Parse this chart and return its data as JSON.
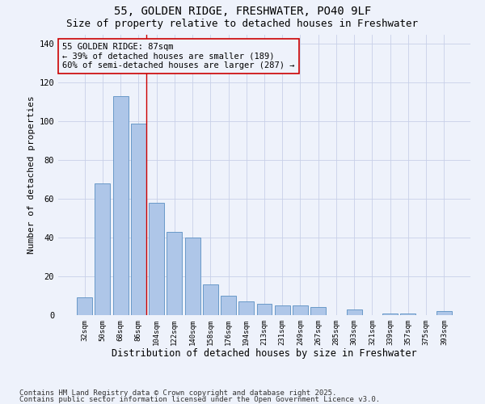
{
  "title_line1": "55, GOLDEN RIDGE, FRESHWATER, PO40 9LF",
  "title_line2": "Size of property relative to detached houses in Freshwater",
  "xlabel": "Distribution of detached houses by size in Freshwater",
  "ylabel": "Number of detached properties",
  "categories": [
    "32sqm",
    "50sqm",
    "68sqm",
    "86sqm",
    "104sqm",
    "122sqm",
    "140sqm",
    "158sqm",
    "176sqm",
    "194sqm",
    "213sqm",
    "231sqm",
    "249sqm",
    "267sqm",
    "285sqm",
    "303sqm",
    "321sqm",
    "339sqm",
    "357sqm",
    "375sqm",
    "393sqm"
  ],
  "values": [
    9,
    68,
    113,
    99,
    58,
    43,
    40,
    16,
    10,
    7,
    6,
    5,
    5,
    4,
    0,
    3,
    0,
    1,
    1,
    0,
    2
  ],
  "bar_color": "#aec6e8",
  "bar_edge_color": "#5a8fc2",
  "ylim": [
    0,
    145
  ],
  "yticks": [
    0,
    20,
    40,
    60,
    80,
    100,
    120,
    140
  ],
  "annotation_text": "55 GOLDEN RIDGE: 87sqm\n← 39% of detached houses are smaller (189)\n60% of semi-detached houses are larger (287) →",
  "vline_bar_index": 3,
  "vline_color": "#cc0000",
  "annotation_box_color": "#cc0000",
  "annotation_fontsize": 7.5,
  "footnote1": "Contains HM Land Registry data © Crown copyright and database right 2025.",
  "footnote2": "Contains public sector information licensed under the Open Government Licence v3.0.",
  "background_color": "#eef2fb",
  "grid_color": "#c8d0e8",
  "title_fontsize": 10,
  "subtitle_fontsize": 9,
  "xlabel_fontsize": 8.5,
  "ylabel_fontsize": 8,
  "footnote_fontsize": 6.5
}
